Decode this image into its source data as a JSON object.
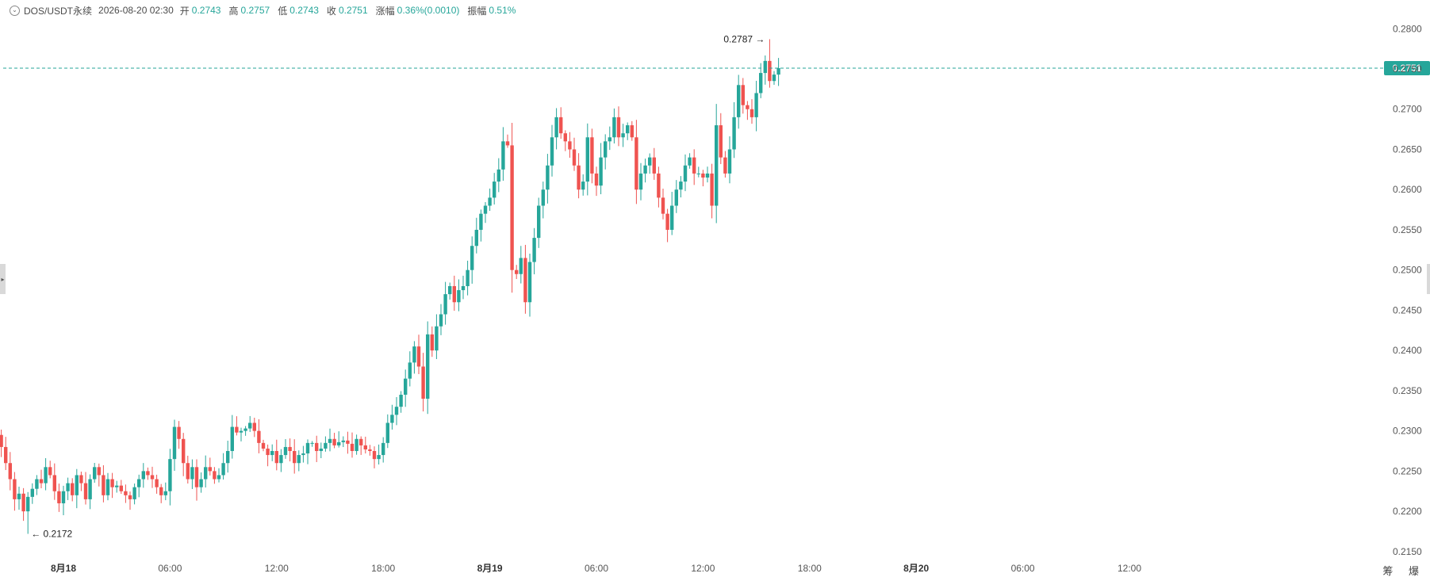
{
  "header": {
    "symbol": "DOS/USDT永续",
    "time": "2026-08-20 02:30",
    "open_label": "开",
    "open": "0.2743",
    "high_label": "高",
    "high": "0.2757",
    "low_label": "低",
    "low": "0.2743",
    "close_label": "收",
    "close": "0.2751",
    "change_label": "涨幅",
    "change": "0.36%(0.0010)",
    "amp_label": "振幅",
    "amp": "0.51%"
  },
  "bottom_icons": "筹 爆",
  "colors": {
    "up": "#26a69a",
    "down": "#ef5350",
    "current": "#26a69a"
  },
  "chart_data": {
    "type": "candlestick",
    "y_range": [
      0.214,
      0.2818
    ],
    "y_ticks": [
      "0.2150",
      "0.2200",
      "0.2250",
      "0.2300",
      "0.2350",
      "0.2400",
      "0.2450",
      "0.2500",
      "0.2550",
      "0.2600",
      "0.2650",
      "0.2700",
      "0.2750",
      "0.2800"
    ],
    "x_ticks": [
      {
        "label": "8月18",
        "bold": true,
        "hour": 0
      },
      {
        "label": "06:00",
        "bold": false,
        "hour": 6
      },
      {
        "label": "12:00",
        "bold": false,
        "hour": 12
      },
      {
        "label": "18:00",
        "bold": false,
        "hour": 18
      },
      {
        "label": "8月19",
        "bold": true,
        "hour": 24
      },
      {
        "label": "06:00",
        "bold": false,
        "hour": 30
      },
      {
        "label": "12:00",
        "bold": false,
        "hour": 36
      },
      {
        "label": "18:00",
        "bold": false,
        "hour": 42
      },
      {
        "label": "8月20",
        "bold": true,
        "hour": 48
      },
      {
        "label": "06:00",
        "bold": false,
        "hour": 54
      },
      {
        "label": "12:00",
        "bold": false,
        "hour": 60
      }
    ],
    "candle_interval": "15m",
    "current_price": 0.2751,
    "current_price_label": "0.2751",
    "max_annotation": {
      "value": 0.2787,
      "label": "0.2787"
    },
    "min_annotation": {
      "value": 0.2172,
      "label": "0.2172"
    },
    "closes": [
      0.2318,
      0.2313,
      0.2308,
      0.2322,
      0.2298,
      0.2285,
      0.2302,
      0.2318,
      0.234,
      0.2335,
      0.231,
      0.2315,
      0.233,
      0.2365,
      0.2392,
      0.242,
      0.241,
      0.2385,
      0.237,
      0.2375,
      0.235,
      0.2335,
      0.2365,
      0.2355,
      0.2345,
      0.233,
      0.2315,
      0.2335,
      0.2325,
      0.231,
      0.233,
      0.2345,
      0.232,
      0.231,
      0.2305,
      0.2315,
      0.2312,
      0.23,
      0.2285,
      0.227,
      0.2255,
      0.227,
      0.2295,
      0.228,
      0.226,
      0.224,
      0.2215,
      0.2222,
      0.22,
      0.2218,
      0.2228,
      0.224,
      0.2235,
      0.2255,
      0.2245,
      0.2225,
      0.221,
      0.2225,
      0.2235,
      0.222,
      0.2245,
      0.2235,
      0.2215,
      0.224,
      0.2255,
      0.2245,
      0.222,
      0.224,
      0.223,
      0.2232,
      0.2225,
      0.222,
      0.2215,
      0.223,
      0.224,
      0.225,
      0.2245,
      0.224,
      0.223,
      0.222,
      0.2225,
      0.2265,
      0.2305,
      0.229,
      0.226,
      0.224,
      0.2255,
      0.223,
      0.224,
      0.2255,
      0.225,
      0.224,
      0.2245,
      0.226,
      0.2275,
      0.2305,
      0.2298,
      0.23,
      0.2303,
      0.231,
      0.23,
      0.2285,
      0.2278,
      0.227,
      0.2275,
      0.226,
      0.227,
      0.228,
      0.2275,
      0.226,
      0.227,
      0.2272,
      0.2285,
      0.2285,
      0.2275,
      0.2278,
      0.2285,
      0.229,
      0.2282,
      0.2286,
      0.2288,
      0.2284,
      0.2275,
      0.229,
      0.2282,
      0.2277,
      0.2275,
      0.2265,
      0.227,
      0.2285,
      0.231,
      0.232,
      0.233,
      0.2345,
      0.2365,
      0.2385,
      0.2405,
      0.238,
      0.234,
      0.242,
      0.24,
      0.243,
      0.2445,
      0.247,
      0.248,
      0.246,
      0.2475,
      0.248,
      0.25,
      0.253,
      0.255,
      0.257,
      0.258,
      0.259,
      0.261,
      0.2625,
      0.266,
      0.2655,
      0.25,
      0.2495,
      0.2515,
      0.246,
      0.251,
      0.254,
      0.258,
      0.26,
      0.263,
      0.2665,
      0.269,
      0.267,
      0.266,
      0.265,
      0.263,
      0.26,
      0.261,
      0.2665,
      0.262,
      0.2605,
      0.264,
      0.266,
      0.2665,
      0.269,
      0.2665,
      0.267,
      0.268,
      0.2665,
      0.26,
      0.262,
      0.263,
      0.264,
      0.262,
      0.259,
      0.257,
      0.255,
      0.258,
      0.26,
      0.261,
      0.263,
      0.264,
      0.262,
      0.262,
      0.2615,
      0.262,
      0.258,
      0.268,
      0.264,
      0.262,
      0.265,
      0.269,
      0.273,
      0.2705,
      0.27,
      0.269,
      0.272,
      0.2745,
      0.276,
      0.2735,
      0.2743,
      0.2751
    ]
  }
}
